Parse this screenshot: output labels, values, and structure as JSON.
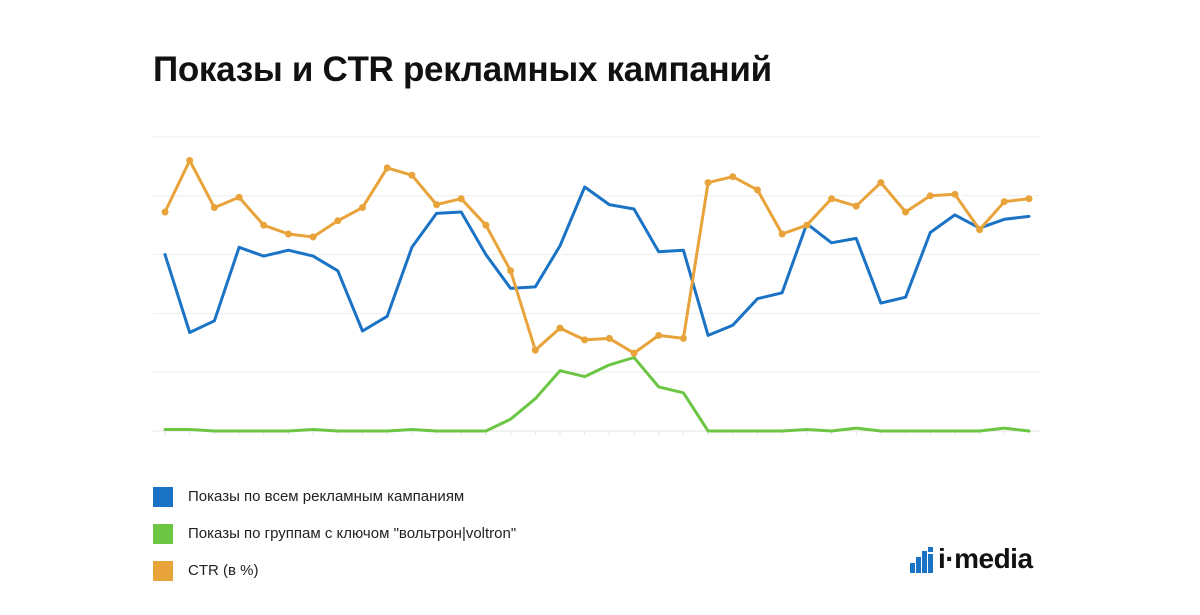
{
  "title": "Показы и CTR рекламных кампаний",
  "logo": {
    "text": "i·media",
    "icon": "bars-logo-icon",
    "color": "#1a73c4"
  },
  "legend": [
    {
      "label": "Показы по всем рекламным кампаниям",
      "color": "#1a73c4"
    },
    {
      "label": "Показы по группам с ключом \"вольтрон|voltron\"",
      "color": "#6cc644"
    },
    {
      "label": "CTR (в %)",
      "color": "#e8a33a"
    }
  ],
  "chart_data": {
    "type": "line",
    "title": "Показы и CTR рекламных кампаний",
    "xlabel": "",
    "ylabel": "",
    "ylim": [
      0,
      100
    ],
    "grid": true,
    "axis_labels_shown": false,
    "legend_position": "bottom-left",
    "x": [
      1,
      2,
      3,
      4,
      5,
      6,
      7,
      8,
      9,
      10,
      11,
      12,
      13,
      14,
      15,
      16,
      17,
      18,
      19,
      20,
      21,
      22,
      23,
      24,
      25,
      26,
      27,
      28,
      29,
      30,
      31,
      32,
      33,
      34,
      35,
      36
    ],
    "series": [
      {
        "name": "Показы по всем рекламным кампаниям",
        "color": "#1a73c4",
        "markers": false,
        "values": [
          60,
          33.5,
          37.5,
          62.5,
          59.5,
          61.5,
          59.5,
          54.5,
          34,
          39,
          62.5,
          74,
          74.5,
          60,
          48.5,
          49,
          63,
          83,
          77,
          75.5,
          61,
          61.5,
          32.5,
          36,
          45,
          47,
          70.5,
          64,
          65.5,
          43.5,
          45.5,
          67.5,
          73.5,
          69,
          72,
          73
        ]
      },
      {
        "name": "Показы по группам с ключом \"вольтрон|voltron\"",
        "color": "#6cc644",
        "markers": false,
        "values": [
          0.5,
          0.5,
          0,
          0,
          0,
          0,
          0.5,
          0,
          0,
          0,
          0.5,
          0,
          0,
          0,
          4,
          11,
          20.5,
          18.5,
          22.5,
          25,
          15,
          13,
          0,
          0,
          0,
          0,
          0.5,
          0,
          1,
          0,
          0,
          0,
          0,
          0,
          1,
          0
        ]
      },
      {
        "name": "CTR (в %)",
        "color": "#e8a33a",
        "markers": true,
        "values": [
          74.5,
          92,
          76,
          79.5,
          70,
          67,
          66,
          71.5,
          76,
          89.5,
          87,
          77,
          79,
          70,
          54.5,
          27.5,
          35,
          31,
          31.5,
          26.5,
          32.5,
          31.5,
          84.5,
          86.5,
          82,
          67,
          70,
          79,
          76.5,
          84.5,
          74.5,
          80,
          80.5,
          68.5,
          78,
          79
        ]
      }
    ]
  }
}
